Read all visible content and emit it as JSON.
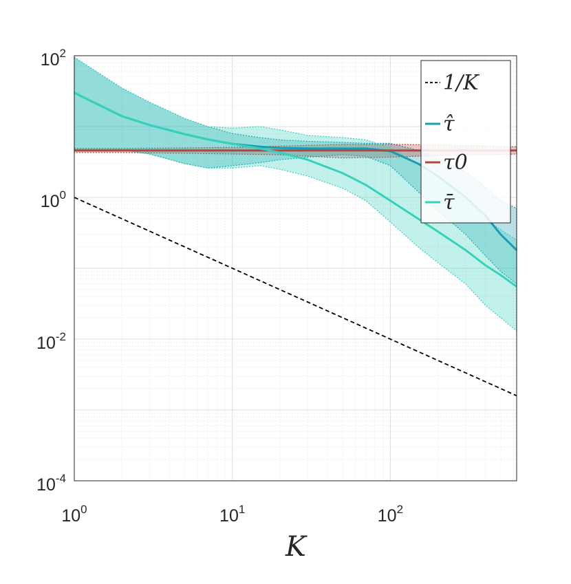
{
  "chart_data": {
    "type": "line",
    "xscale": "log",
    "yscale": "log",
    "xlim": [
      1,
      630
    ],
    "ylim": [
      0.0001,
      100
    ],
    "xlabel": "K",
    "ylabel": "",
    "grid": true,
    "legend_position": "top-right",
    "xticks": [
      {
        "base": "10",
        "exp": "0",
        "value": 1
      },
      {
        "base": "10",
        "exp": "1",
        "value": 10
      },
      {
        "base": "10",
        "exp": "2",
        "value": 100
      }
    ],
    "yticks": [
      {
        "base": "10",
        "exp": "-4",
        "value": 0.0001
      },
      {
        "base": "10",
        "exp": "-2",
        "value": 0.01
      },
      {
        "base": "10",
        "exp": "0",
        "value": 1
      },
      {
        "base": "10",
        "exp": "2",
        "value": 100
      }
    ],
    "series": [
      {
        "name": "1/K",
        "style": "dashed",
        "color": "#000000",
        "x": [
          1,
          630
        ],
        "y": [
          1,
          0.00159
        ]
      },
      {
        "name": "τ̂",
        "color": "#1a9bb0",
        "x": [
          1,
          2,
          3,
          5,
          7,
          10,
          15,
          20,
          30,
          50,
          70,
          100,
          150,
          200,
          300,
          400,
          500,
          630
        ],
        "y": [
          30,
          14,
          10.5,
          7.8,
          6.6,
          5.7,
          5.2,
          5.0,
          4.9,
          4.9,
          4.9,
          4.5,
          3.0,
          2.0,
          1.0,
          0.55,
          0.3,
          0.18
        ],
        "band_upper": [
          95,
          35,
          22,
          13,
          10,
          8,
          7,
          6.5,
          6.2,
          6.0,
          5.8,
          5.8,
          4.6,
          3.5,
          2.3,
          1.4,
          0.9,
          0.7
        ],
        "band_lower": [
          4.6,
          4.7,
          4.1,
          3.0,
          2.6,
          2.8,
          3.1,
          3.4,
          3.7,
          4.0,
          3.8,
          2.8,
          1.2,
          0.65,
          0.3,
          0.15,
          0.09,
          0.06
        ]
      },
      {
        "name": "τ0",
        "color": "#b5443f",
        "x": [
          1,
          2,
          5,
          10,
          20,
          50,
          100,
          200,
          400,
          630
        ],
        "y": [
          4.6,
          4.6,
          4.6,
          4.6,
          4.6,
          4.6,
          4.6,
          4.6,
          4.6,
          4.6
        ],
        "band_upper": [
          4.9,
          4.9,
          5.0,
          5.1,
          5.3,
          5.6,
          5.6,
          5.5,
          5.3,
          5.2
        ],
        "band_lower": [
          4.3,
          4.3,
          4.2,
          4.1,
          4.0,
          3.6,
          3.7,
          3.9,
          4.0,
          4.1
        ]
      },
      {
        "name": "τ̄",
        "color": "#36d1bd",
        "x": [
          1,
          2,
          3,
          5,
          7,
          10,
          15,
          20,
          30,
          50,
          70,
          100,
          150,
          200,
          300,
          400,
          500,
          630
        ],
        "y": [
          30,
          14,
          10.5,
          7.8,
          6.6,
          5.7,
          4.9,
          4.3,
          3.4,
          2.2,
          1.5,
          0.9,
          0.5,
          0.33,
          0.18,
          0.11,
          0.08,
          0.055
        ],
        "band_upper": [
          95,
          35,
          22,
          13,
          10,
          9.5,
          10,
          9,
          7.5,
          7.0,
          6.5,
          5.0,
          3.0,
          2.0,
          0.9,
          0.5,
          0.35,
          0.25
        ],
        "band_lower": [
          4.6,
          4.7,
          4.1,
          3.0,
          2.6,
          2.6,
          2.8,
          2.5,
          2.0,
          1.35,
          0.9,
          0.45,
          0.2,
          0.12,
          0.06,
          0.03,
          0.02,
          0.013
        ]
      }
    ]
  }
}
